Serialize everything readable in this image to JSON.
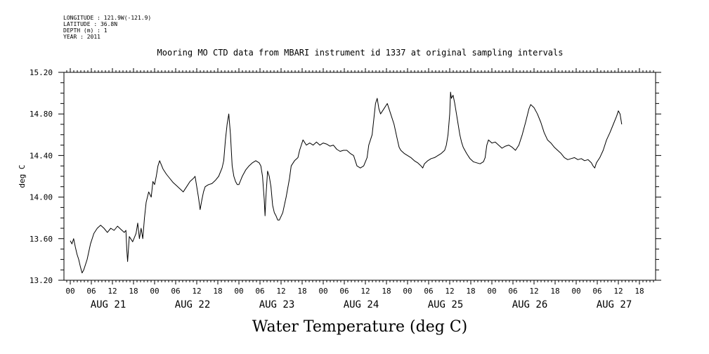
{
  "header": {
    "meta_lines": [
      "LONGITUDE : 121.9W(-121.9)",
      "LATITUDE : 36.8N",
      "DEPTH (m) : 1",
      "YEAR : 2011"
    ],
    "title": "Mooring MO CTD data from MBARI instrument id 1337 at original sampling intervals"
  },
  "chart_data": {
    "type": "line",
    "title": "Water Temperature (deg C)",
    "ylabel": "deg C",
    "xlabel": "",
    "ylim": [
      13.2,
      15.2
    ],
    "xlim": [
      0,
      7
    ],
    "x_unit": "days since AUG 21 00:00",
    "yticks": [
      13.2,
      13.6,
      14.0,
      14.4,
      14.8,
      15.2
    ],
    "ytick_labels": [
      "13.20",
      "13.60",
      "14.00",
      "14.40",
      "14.80",
      "15.20"
    ],
    "hour_tick_labels": [
      "00",
      "06",
      "12",
      "18"
    ],
    "day_labels": [
      "AUG 21",
      "AUG 22",
      "AUG 23",
      "AUG 24",
      "AUG 25",
      "AUG 26",
      "AUG 27"
    ],
    "grid": false,
    "series": [
      {
        "name": "",
        "color": "#000000",
        "points": [
          [
            0.0,
            13.58
          ],
          [
            0.02,
            13.55
          ],
          [
            0.04,
            13.6
          ],
          [
            0.06,
            13.52
          ],
          [
            0.08,
            13.45
          ],
          [
            0.1,
            13.4
          ],
          [
            0.12,
            13.33
          ],
          [
            0.14,
            13.27
          ],
          [
            0.16,
            13.3
          ],
          [
            0.2,
            13.4
          ],
          [
            0.24,
            13.55
          ],
          [
            0.28,
            13.65
          ],
          [
            0.32,
            13.7
          ],
          [
            0.36,
            13.73
          ],
          [
            0.4,
            13.7
          ],
          [
            0.44,
            13.66
          ],
          [
            0.48,
            13.7
          ],
          [
            0.52,
            13.68
          ],
          [
            0.56,
            13.72
          ],
          [
            0.6,
            13.69
          ],
          [
            0.64,
            13.66
          ],
          [
            0.66,
            13.68
          ],
          [
            0.67,
            13.5
          ],
          [
            0.68,
            13.38
          ],
          [
            0.7,
            13.62
          ],
          [
            0.74,
            13.57
          ],
          [
            0.78,
            13.65
          ],
          [
            0.8,
            13.75
          ],
          [
            0.82,
            13.6
          ],
          [
            0.84,
            13.7
          ],
          [
            0.86,
            13.6
          ],
          [
            0.88,
            13.8
          ],
          [
            0.9,
            13.95
          ],
          [
            0.93,
            14.05
          ],
          [
            0.96,
            14.0
          ],
          [
            0.98,
            14.15
          ],
          [
            1.0,
            14.12
          ],
          [
            1.02,
            14.2
          ],
          [
            1.04,
            14.3
          ],
          [
            1.06,
            14.35
          ],
          [
            1.1,
            14.27
          ],
          [
            1.14,
            14.22
          ],
          [
            1.18,
            14.18
          ],
          [
            1.22,
            14.14
          ],
          [
            1.26,
            14.11
          ],
          [
            1.3,
            14.08
          ],
          [
            1.34,
            14.05
          ],
          [
            1.38,
            14.1
          ],
          [
            1.42,
            14.15
          ],
          [
            1.46,
            14.18
          ],
          [
            1.48,
            14.2
          ],
          [
            1.5,
            14.1
          ],
          [
            1.52,
            14.0
          ],
          [
            1.54,
            13.88
          ],
          [
            1.56,
            13.97
          ],
          [
            1.58,
            14.05
          ],
          [
            1.6,
            14.1
          ],
          [
            1.64,
            14.12
          ],
          [
            1.68,
            14.13
          ],
          [
            1.72,
            14.16
          ],
          [
            1.76,
            14.2
          ],
          [
            1.8,
            14.28
          ],
          [
            1.82,
            14.35
          ],
          [
            1.84,
            14.55
          ],
          [
            1.86,
            14.7
          ],
          [
            1.88,
            14.8
          ],
          [
            1.9,
            14.6
          ],
          [
            1.92,
            14.3
          ],
          [
            1.94,
            14.2
          ],
          [
            1.96,
            14.15
          ],
          [
            1.98,
            14.12
          ],
          [
            2.0,
            14.12
          ],
          [
            2.04,
            14.2
          ],
          [
            2.08,
            14.26
          ],
          [
            2.12,
            14.3
          ],
          [
            2.16,
            14.33
          ],
          [
            2.2,
            14.35
          ],
          [
            2.24,
            14.33
          ],
          [
            2.26,
            14.3
          ],
          [
            2.28,
            14.2
          ],
          [
            2.3,
            13.98
          ],
          [
            2.31,
            13.82
          ],
          [
            2.32,
            14.0
          ],
          [
            2.34,
            14.25
          ],
          [
            2.36,
            14.2
          ],
          [
            2.38,
            14.1
          ],
          [
            2.4,
            13.92
          ],
          [
            2.42,
            13.85
          ],
          [
            2.44,
            13.82
          ],
          [
            2.46,
            13.78
          ],
          [
            2.48,
            13.78
          ],
          [
            2.52,
            13.85
          ],
          [
            2.56,
            14.0
          ],
          [
            2.6,
            14.18
          ],
          [
            2.62,
            14.3
          ],
          [
            2.66,
            14.35
          ],
          [
            2.7,
            14.38
          ],
          [
            2.72,
            14.45
          ],
          [
            2.74,
            14.5
          ],
          [
            2.76,
            14.55
          ],
          [
            2.8,
            14.5
          ],
          [
            2.84,
            14.52
          ],
          [
            2.88,
            14.5
          ],
          [
            2.92,
            14.53
          ],
          [
            2.96,
            14.5
          ],
          [
            3.0,
            14.52
          ],
          [
            3.04,
            14.51
          ],
          [
            3.08,
            14.49
          ],
          [
            3.12,
            14.5
          ],
          [
            3.16,
            14.46
          ],
          [
            3.2,
            14.44
          ],
          [
            3.24,
            14.45
          ],
          [
            3.28,
            14.45
          ],
          [
            3.32,
            14.42
          ],
          [
            3.36,
            14.4
          ],
          [
            3.38,
            14.35
          ],
          [
            3.4,
            14.3
          ],
          [
            3.44,
            14.28
          ],
          [
            3.48,
            14.3
          ],
          [
            3.52,
            14.38
          ],
          [
            3.54,
            14.5
          ],
          [
            3.56,
            14.55
          ],
          [
            3.58,
            14.6
          ],
          [
            3.6,
            14.75
          ],
          [
            3.62,
            14.9
          ],
          [
            3.64,
            14.95
          ],
          [
            3.66,
            14.85
          ],
          [
            3.68,
            14.8
          ],
          [
            3.72,
            14.85
          ],
          [
            3.76,
            14.9
          ],
          [
            3.78,
            14.85
          ],
          [
            3.8,
            14.8
          ],
          [
            3.84,
            14.7
          ],
          [
            3.88,
            14.55
          ],
          [
            3.9,
            14.48
          ],
          [
            3.92,
            14.45
          ],
          [
            3.96,
            14.42
          ],
          [
            4.0,
            14.4
          ],
          [
            4.04,
            14.38
          ],
          [
            4.08,
            14.35
          ],
          [
            4.12,
            14.33
          ],
          [
            4.16,
            14.3
          ],
          [
            4.18,
            14.28
          ],
          [
            4.2,
            14.32
          ],
          [
            4.24,
            14.35
          ],
          [
            4.28,
            14.37
          ],
          [
            4.32,
            14.38
          ],
          [
            4.36,
            14.4
          ],
          [
            4.4,
            14.42
          ],
          [
            4.44,
            14.45
          ],
          [
            4.46,
            14.5
          ],
          [
            4.48,
            14.6
          ],
          [
            4.5,
            14.8
          ],
          [
            4.51,
            15.01
          ],
          [
            4.52,
            14.95
          ],
          [
            4.54,
            14.98
          ],
          [
            4.56,
            14.9
          ],
          [
            4.58,
            14.8
          ],
          [
            4.6,
            14.7
          ],
          [
            4.62,
            14.6
          ],
          [
            4.64,
            14.53
          ],
          [
            4.66,
            14.48
          ],
          [
            4.7,
            14.42
          ],
          [
            4.74,
            14.37
          ],
          [
            4.78,
            14.34
          ],
          [
            4.82,
            14.33
          ],
          [
            4.86,
            14.32
          ],
          [
            4.9,
            14.34
          ],
          [
            4.92,
            14.38
          ],
          [
            4.94,
            14.5
          ],
          [
            4.96,
            14.55
          ],
          [
            5.0,
            14.52
          ],
          [
            5.04,
            14.53
          ],
          [
            5.08,
            14.5
          ],
          [
            5.12,
            14.47
          ],
          [
            5.16,
            14.49
          ],
          [
            5.2,
            14.5
          ],
          [
            5.24,
            14.48
          ],
          [
            5.28,
            14.45
          ],
          [
            5.32,
            14.5
          ],
          [
            5.36,
            14.6
          ],
          [
            5.4,
            14.72
          ],
          [
            5.44,
            14.85
          ],
          [
            5.46,
            14.89
          ],
          [
            5.5,
            14.86
          ],
          [
            5.54,
            14.8
          ],
          [
            5.58,
            14.72
          ],
          [
            5.62,
            14.62
          ],
          [
            5.66,
            14.55
          ],
          [
            5.7,
            14.52
          ],
          [
            5.74,
            14.48
          ],
          [
            5.78,
            14.45
          ],
          [
            5.82,
            14.42
          ],
          [
            5.86,
            14.38
          ],
          [
            5.9,
            14.36
          ],
          [
            5.94,
            14.37
          ],
          [
            5.98,
            14.38
          ],
          [
            6.02,
            14.36
          ],
          [
            6.06,
            14.37
          ],
          [
            6.1,
            14.35
          ],
          [
            6.14,
            14.36
          ],
          [
            6.18,
            14.33
          ],
          [
            6.2,
            14.3
          ],
          [
            6.22,
            14.28
          ],
          [
            6.24,
            14.33
          ],
          [
            6.28,
            14.38
          ],
          [
            6.32,
            14.45
          ],
          [
            6.36,
            14.55
          ],
          [
            6.4,
            14.62
          ],
          [
            6.44,
            14.7
          ],
          [
            6.48,
            14.78
          ],
          [
            6.5,
            14.83
          ],
          [
            6.52,
            14.8
          ],
          [
            6.54,
            14.7
          ]
        ]
      }
    ]
  }
}
